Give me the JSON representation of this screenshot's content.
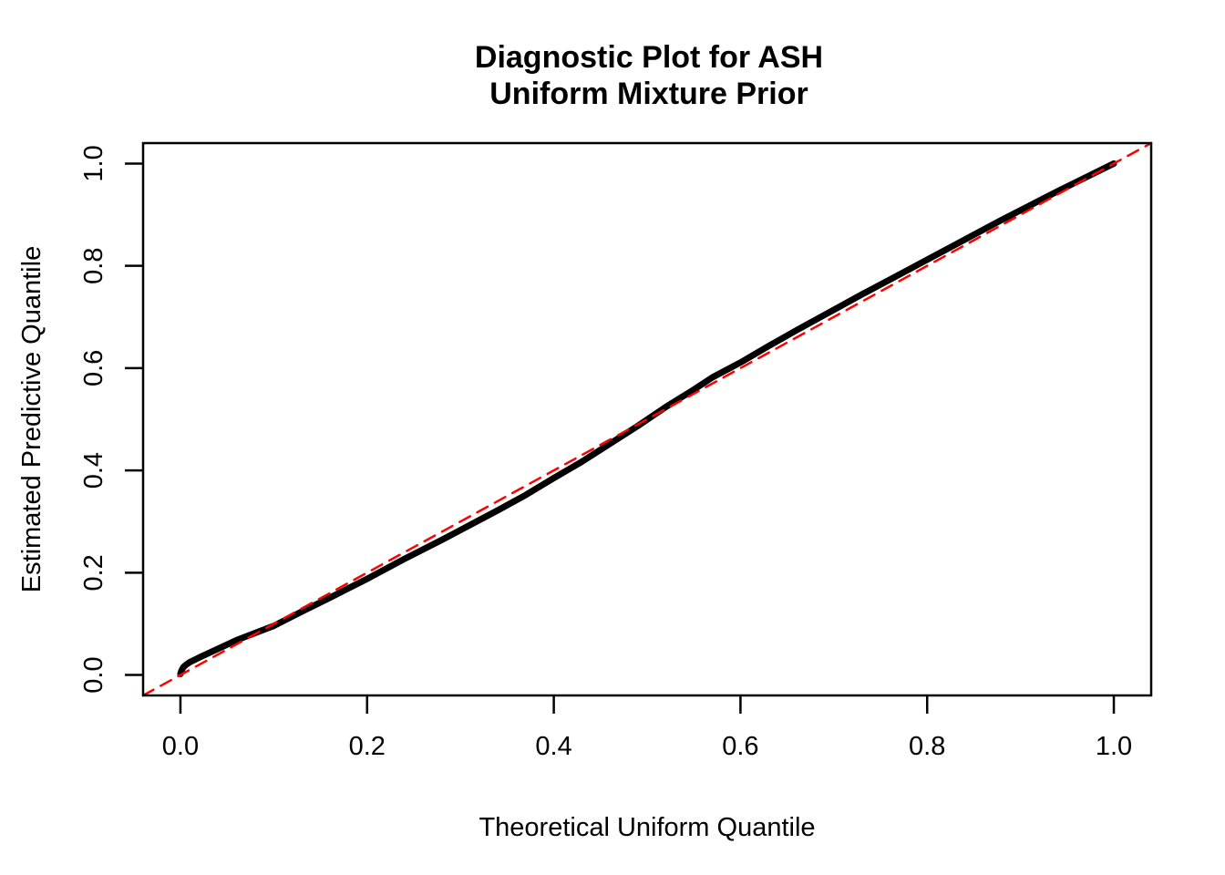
{
  "figure": {
    "title_line1": "Diagnostic Plot for ASH",
    "title_line2": "Uniform Mixture Prior",
    "x_axis_label": "Theoretical Uniform Quantile",
    "y_axis_label": "Estimated Predictive Quantile"
  },
  "chart_data": {
    "type": "line",
    "title": "Diagnostic Plot for ASH\nUniform Mixture Prior",
    "xlabel": "Theoretical Uniform Quantile",
    "ylabel": "Estimated Predictive Quantile",
    "xlim": [
      -0.04,
      1.04
    ],
    "ylim": [
      -0.04,
      1.04
    ],
    "x_ticks": [
      0.0,
      0.2,
      0.4,
      0.6,
      0.8,
      1.0
    ],
    "y_ticks": [
      0.0,
      0.2,
      0.4,
      0.6,
      0.8,
      1.0
    ],
    "grid": false,
    "legend": "none",
    "background_color": "#FFFFFF",
    "axis_color": "#000000",
    "series": [
      {
        "name": "estimated-vs-theoretical-quantiles",
        "style": "solid",
        "color": "#000000",
        "stroke_width": 7,
        "x": [
          0.0,
          0.001,
          0.003,
          0.006,
          0.01,
          0.02,
          0.04,
          0.06,
          0.08,
          0.1,
          0.13,
          0.16,
          0.2,
          0.24,
          0.28,
          0.31,
          0.34,
          0.37,
          0.4,
          0.43,
          0.46,
          0.49,
          0.52,
          0.55,
          0.57,
          0.6,
          0.63,
          0.66,
          0.7,
          0.73,
          0.76,
          0.8,
          0.84,
          0.88,
          0.91,
          0.94,
          0.96,
          0.98,
          1.0
        ],
        "y": [
          0.002,
          0.008,
          0.015,
          0.02,
          0.025,
          0.034,
          0.051,
          0.068,
          0.082,
          0.096,
          0.124,
          0.151,
          0.188,
          0.227,
          0.264,
          0.293,
          0.322,
          0.352,
          0.385,
          0.417,
          0.452,
          0.487,
          0.524,
          0.558,
          0.582,
          0.611,
          0.643,
          0.674,
          0.714,
          0.744,
          0.773,
          0.812,
          0.851,
          0.89,
          0.918,
          0.946,
          0.964,
          0.982,
          1.0
        ]
      },
      {
        "name": "identity-reference-line",
        "style": "dashed",
        "color": "#FF0000",
        "stroke_width": 2.5,
        "x": [
          -0.04,
          1.04
        ],
        "y": [
          -0.04,
          1.04
        ]
      }
    ]
  }
}
